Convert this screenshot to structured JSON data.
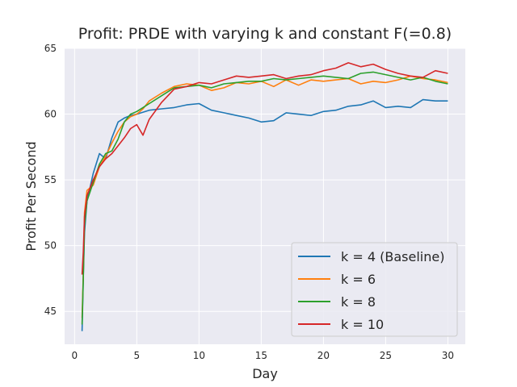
{
  "chart_data": {
    "type": "line",
    "title": "Profit: PRDE with varying k and constant F(=0.8)",
    "xlabel": "Day",
    "ylabel": "Profit Per Second",
    "xlim": [
      -0.8,
      31.4
    ],
    "ylim": [
      42.5,
      65
    ],
    "xticks": [
      0,
      5,
      10,
      15,
      20,
      25,
      30
    ],
    "yticks": [
      45,
      50,
      55,
      60,
      65
    ],
    "grid": true,
    "background": "#eaeaf2",
    "legend_position": "lower-right",
    "series": [
      {
        "name": "k = 4 (Baseline)",
        "color": "#1f77b4",
        "x": [
          0.6,
          0.7,
          0.8,
          1,
          1.5,
          2,
          2.5,
          3,
          3.5,
          4,
          4.5,
          5,
          6,
          7,
          8,
          9,
          10,
          11,
          12,
          13,
          14,
          15,
          16,
          17,
          18,
          19,
          20,
          21,
          22,
          23,
          24,
          25,
          26,
          27,
          28,
          29,
          30
        ],
        "y": [
          43.5,
          47.5,
          51,
          53.4,
          55.5,
          57,
          56.6,
          58.2,
          59.4,
          59.7,
          59.9,
          60,
          60.3,
          60.4,
          60.5,
          60.7,
          60.8,
          60.3,
          60.1,
          59.9,
          59.7,
          59.4,
          59.5,
          60.1,
          60.0,
          59.9,
          60.2,
          60.3,
          60.6,
          60.7,
          61.0,
          60.5,
          60.6,
          60.5,
          61.1,
          61.0,
          61.0
        ]
      },
      {
        "name": "k = 6",
        "color": "#ff7f0e",
        "x": [
          0.6,
          0.7,
          0.8,
          1,
          1.5,
          2,
          2.5,
          3,
          3.5,
          4,
          4.5,
          5,
          5.5,
          6,
          7,
          8,
          9,
          10,
          11,
          12,
          13,
          14,
          15,
          16,
          17,
          18,
          19,
          20,
          21,
          22,
          23,
          24,
          25,
          26,
          27,
          28,
          29,
          30
        ],
        "y": [
          44.5,
          47.8,
          52.5,
          54.2,
          54.6,
          56,
          56.8,
          57.8,
          58.7,
          59.4,
          59.8,
          60,
          60.4,
          61,
          61.6,
          62.1,
          62.3,
          62.2,
          61.8,
          62.0,
          62.4,
          62.3,
          62.5,
          62.1,
          62.6,
          62.2,
          62.6,
          62.5,
          62.6,
          62.7,
          62.3,
          62.5,
          62.4,
          62.6,
          62.9,
          62.7,
          62.6,
          62.4
        ]
      },
      {
        "name": "k = 8",
        "color": "#2ca02c",
        "x": [
          0.6,
          0.7,
          0.8,
          1,
          1.5,
          2,
          2.5,
          3,
          3.5,
          4,
          4.5,
          5,
          5.5,
          6,
          7,
          8,
          9,
          10,
          11,
          12,
          13,
          14,
          15,
          16,
          17,
          18,
          19,
          20,
          21,
          22,
          23,
          24,
          25,
          26,
          27,
          28,
          29,
          30
        ],
        "y": [
          44.0,
          47.5,
          51.5,
          53.4,
          54.8,
          56.2,
          57.0,
          57.2,
          58.1,
          59.4,
          60.0,
          60.2,
          60.5,
          60.8,
          61.4,
          62.0,
          62.1,
          62.2,
          62.0,
          62.3,
          62.4,
          62.5,
          62.5,
          62.7,
          62.6,
          62.7,
          62.8,
          62.9,
          62.8,
          62.7,
          63.1,
          63.2,
          63.0,
          62.8,
          62.6,
          62.8,
          62.5,
          62.3
        ]
      },
      {
        "name": "k = 10",
        "color": "#d62728",
        "x": [
          0.6,
          0.7,
          0.8,
          1,
          1.5,
          2,
          2.5,
          3,
          3.5,
          4,
          4.5,
          5,
          5.5,
          6,
          7,
          8,
          9,
          10,
          11,
          12,
          13,
          14,
          15,
          16,
          17,
          18,
          19,
          20,
          21,
          22,
          23,
          24,
          25,
          26,
          27,
          28,
          29,
          30
        ],
        "y": [
          47.8,
          49.5,
          52.2,
          53.8,
          55.0,
          56.0,
          56.6,
          57.0,
          57.6,
          58.2,
          58.9,
          59.2,
          58.4,
          59.6,
          60.9,
          61.9,
          62.1,
          62.4,
          62.3,
          62.6,
          62.9,
          62.8,
          62.9,
          63.0,
          62.7,
          62.9,
          63.0,
          63.3,
          63.5,
          63.9,
          63.6,
          63.8,
          63.4,
          63.1,
          62.9,
          62.8,
          63.3,
          63.1
        ]
      }
    ]
  }
}
